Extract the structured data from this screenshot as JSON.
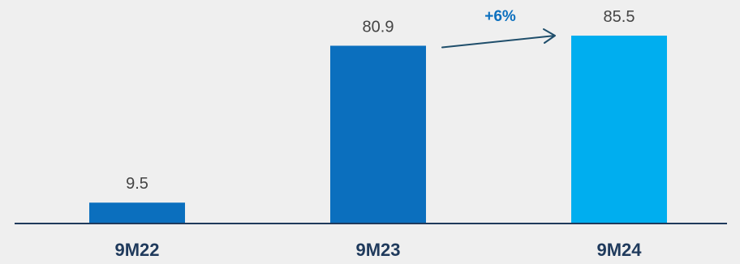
{
  "chart_data": {
    "type": "bar",
    "categories": [
      "9M22",
      "9M23",
      "9M24"
    ],
    "values": [
      9.5,
      80.9,
      85.5
    ],
    "value_labels": [
      "9.5",
      "80.9",
      "85.5"
    ],
    "title": "",
    "xlabel": "",
    "ylabel": "",
    "ylim": [
      0,
      85.5
    ],
    "grid": false,
    "legend": "none",
    "annotation": {
      "text": "+6%",
      "from_category": "9M23",
      "to_category": "9M24"
    }
  },
  "colors": {
    "background": "#efefef",
    "bars": [
      "#0b6fbe",
      "#0b6fbe",
      "#00aeef"
    ],
    "axis": "#1f3a5c",
    "category_text": "#1f3a5c",
    "annotation": "#0b6fbe",
    "arrow": "#1f4e6b"
  }
}
